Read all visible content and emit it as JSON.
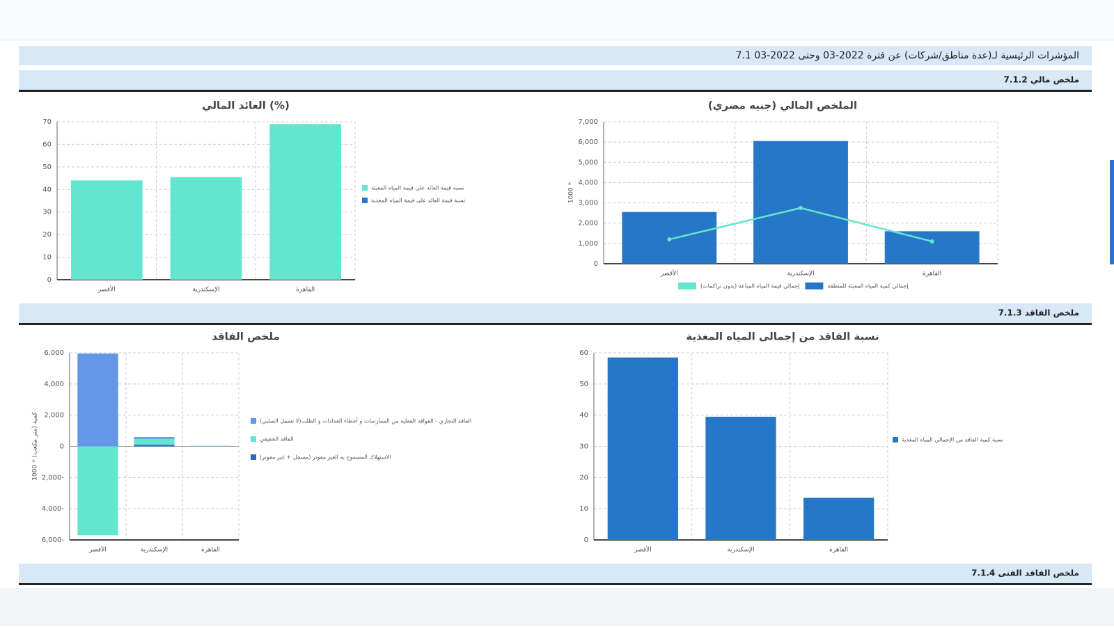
{
  "header": {
    "title": "7.1 المؤشرات الرئيسية لـ(عدة مناطق/شركات) عن فترة 2022-03 وحتى 2022-03"
  },
  "sections": [
    "7.1.2 ملخص مالي",
    "7.1.3 ملخص الفاقد",
    "7.1.4 ملخص الفاقد الفنى"
  ],
  "chart_data": [
    {
      "type": "bar",
      "title": "العائد المالي (%)",
      "categories": [
        "الأقصر",
        "الإسكندرية",
        "القاهرة"
      ],
      "series": [
        {
          "name": "نسبة قيمة العائد على قيمة المياه المعبئة",
          "color": "#63e6cf",
          "values": [
            44,
            45.5,
            69
          ]
        },
        {
          "name": "نسبة قيمة العائد على قيمة المياه المغذية",
          "color": "#2677c7",
          "values": [
            null,
            null,
            null
          ]
        }
      ],
      "ylim": [
        0,
        70
      ],
      "yticks": [
        0,
        10,
        20,
        30,
        40,
        50,
        60,
        70
      ],
      "grid": true,
      "legend": "right"
    },
    {
      "type": "bar",
      "title": "الملخص المالي (جنيه مصري)",
      "y_label": "1000 *",
      "categories": [
        "الأقصر",
        "الإسكندرية",
        "القاهرة"
      ],
      "series": [
        {
          "name": "إجمالى كمية المياه المعبئة للمنطقة",
          "color": "#2677c7",
          "values": [
            2550,
            6050,
            1600
          ]
        },
        {
          "name": "إجمالي قيمة المياه المباعة (بدون تراكمات)",
          "color": "#63e6cf",
          "type": "line",
          "values": [
            1200,
            2750,
            1100
          ]
        }
      ],
      "ylim": [
        0,
        7000
      ],
      "yticks": [
        0,
        {
          "value": 1000,
          "label": "1,000"
        },
        {
          "value": 2000,
          "label": "2,000"
        },
        {
          "value": 3000,
          "label": "3,000"
        },
        {
          "value": 4000,
          "label": "4,000"
        },
        {
          "value": 5000,
          "label": "5,000"
        },
        {
          "value": 6000,
          "label": "6,000"
        },
        {
          "value": 7000,
          "label": "7,000"
        }
      ],
      "grid": true,
      "legend": "bottom"
    },
    {
      "type": "bar",
      "stacked": true,
      "title": "ملخص الفاقد",
      "y_label": "كمية (متر مكعب) * 1000",
      "categories": [
        "الأقصر",
        "الإسكندرية",
        "القاهرة"
      ],
      "series": [
        {
          "name": "الاستهلاك المسموح به الغير مفوتر (مسجل + غير مفوتر)",
          "color": "#2a6cb8",
          "values": [
            0,
            100,
            10
          ]
        },
        {
          "name": "الفاقد الحقيقي",
          "color": "#63e6cf",
          "values": [
            -5700,
            380,
            20
          ]
        },
        {
          "name": "الفاقد التجاري - الفواقد الفعلية من الممارسات و أخطاء العدادات و الطلب(لا تشمل السلبي)",
          "color": "#6495e6",
          "values": [
            5950,
            120,
            10
          ]
        }
      ],
      "ylim": [
        -6000,
        6000
      ],
      "yticks": [
        {
          "value": -6000,
          "label": "6,000-"
        },
        {
          "value": -4000,
          "label": "4,000-"
        },
        {
          "value": -2000,
          "label": "2,000-"
        },
        0,
        {
          "value": 2000,
          "label": "2,000"
        },
        {
          "value": 4000,
          "label": "4,000"
        },
        {
          "value": 6000,
          "label": "6,000"
        }
      ],
      "grid": true,
      "legend": "right"
    },
    {
      "type": "bar",
      "title": "نسبة الفاقد من إجمالى المياه المغذية",
      "categories": [
        "الأقصر",
        "الإسكندرية",
        "القاهرة"
      ],
      "series": [
        {
          "name": "نسبة كمية الفاقد من الإجمالي المياه المغذية",
          "color": "#2677c7",
          "values": [
            58.5,
            39.5,
            13.5
          ]
        }
      ],
      "ylim": [
        0,
        60
      ],
      "yticks": [
        0,
        10,
        20,
        30,
        40,
        50,
        60
      ],
      "grid": true,
      "legend": "right"
    }
  ]
}
